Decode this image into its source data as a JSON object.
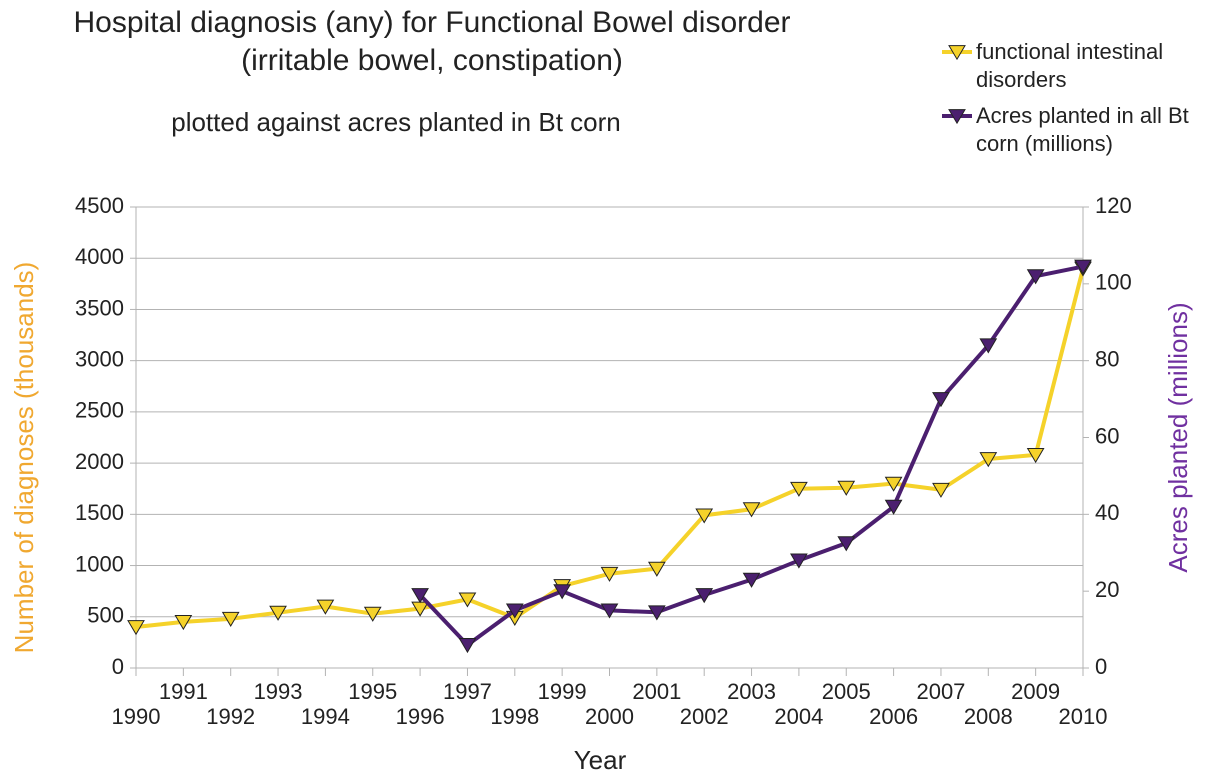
{
  "chart_data": {
    "type": "line",
    "title": [
      "Hospital diagnosis (any) for Functional Bowel disorder",
      "(irritable bowel, constipation)"
    ],
    "subtitle": "plotted against acres planted in Bt corn",
    "x_label": "Year",
    "y_label": "Number of diagnoses (thousands)",
    "y2_label": "Acres planted (millions)",
    "y_label_color": "#f0a830",
    "y2_label_color": "#7030a0",
    "x": [
      1990,
      1991,
      1992,
      1993,
      1994,
      1995,
      1996,
      1997,
      1998,
      1999,
      2000,
      2001,
      2002,
      2003,
      2004,
      2005,
      2006,
      2007,
      2008,
      2009,
      2010
    ],
    "xlim": [
      1990,
      2010
    ],
    "xticks": [
      1990,
      1991,
      1992,
      1993,
      1994,
      1995,
      1996,
      1997,
      1998,
      1999,
      2000,
      2001,
      2002,
      2003,
      2004,
      2005,
      2006,
      2007,
      2008,
      2009,
      2010
    ],
    "ylim": [
      0,
      4500
    ],
    "yticks": [
      0,
      500,
      1000,
      1500,
      2000,
      2500,
      3000,
      3500,
      4000,
      4500
    ],
    "y2lim": [
      0,
      120
    ],
    "y2ticks": [
      0,
      20,
      40,
      60,
      80,
      100,
      120
    ],
    "grid": true,
    "legend": "top-right",
    "series": [
      {
        "name": "functional intestinal disorders",
        "color": "#f5d22a",
        "values": [
          400,
          450,
          480,
          540,
          600,
          530,
          580,
          670,
          490,
          800,
          920,
          970,
          1490,
          1550,
          1750,
          1760,
          1800,
          1740,
          2040,
          2080,
          3900
        ]
      },
      {
        "name": "Acres planted in all Bt corn (millions)",
        "color": "#4b1f6f",
        "axis": "y2",
        "values": [
          null,
          null,
          null,
          null,
          null,
          null,
          19,
          6,
          15,
          20,
          15,
          14.5,
          19,
          23,
          28,
          32.5,
          42,
          70,
          84,
          102,
          104.5
        ]
      }
    ]
  }
}
